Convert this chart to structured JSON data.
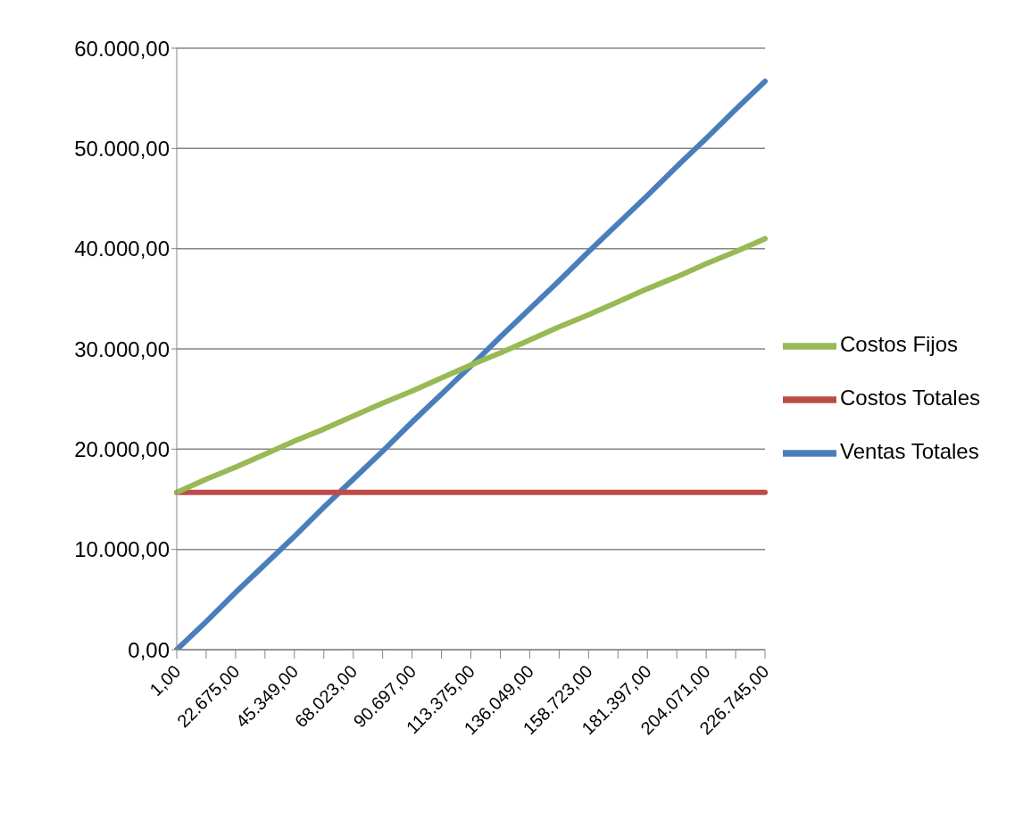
{
  "chart_data": {
    "type": "line",
    "categories": [
      "1,00",
      null,
      "22.675,00",
      null,
      "45.349,00",
      null,
      "68.023,00",
      null,
      "90.697,00",
      null,
      "113.375,00",
      null,
      "136.049,00",
      null,
      "158.723,00",
      null,
      "181.397,00",
      null,
      "204.071,00",
      null,
      "226.745,00"
    ],
    "series": [
      {
        "name": "Ventas Totales",
        "color": "#4a7ebb",
        "values": [
          0,
          2800,
          5700,
          8500,
          11300,
          14200,
          17000,
          19800,
          22700,
          25500,
          28300,
          31200,
          34000,
          36800,
          39700,
          42500,
          45300,
          48200,
          51000,
          53900,
          56700
        ]
      },
      {
        "name": "Costos Totales",
        "color": "#be4b48",
        "values": [
          15700,
          15700,
          15700,
          15700,
          15700,
          15700,
          15700,
          15700,
          15700,
          15700,
          15700,
          15700,
          15700,
          15700,
          15700,
          15700,
          15700,
          15700,
          15700,
          15700,
          15700
        ]
      },
      {
        "name": "Costos Fijos",
        "color": "#98b954",
        "values": [
          15700,
          17000,
          18200,
          19500,
          20800,
          22000,
          23300,
          24600,
          25800,
          27100,
          28400,
          29600,
          30900,
          32200,
          33400,
          34700,
          36000,
          37200,
          38500,
          39700,
          41000
        ]
      }
    ],
    "ylim": [
      0,
      60000
    ],
    "yticks": [
      {
        "value": 0,
        "label": "0,00"
      },
      {
        "value": 10000,
        "label": "10.000,00"
      },
      {
        "value": 20000,
        "label": "20.000,00"
      },
      {
        "value": 30000,
        "label": "30.000,00"
      },
      {
        "value": 40000,
        "label": "40.000,00"
      },
      {
        "value": 50000,
        "label": "50.000,00"
      },
      {
        "value": 60000,
        "label": "60.000,00"
      }
    ],
    "grid": "y",
    "legend": "right",
    "marker": "none",
    "line_style": "solid"
  }
}
